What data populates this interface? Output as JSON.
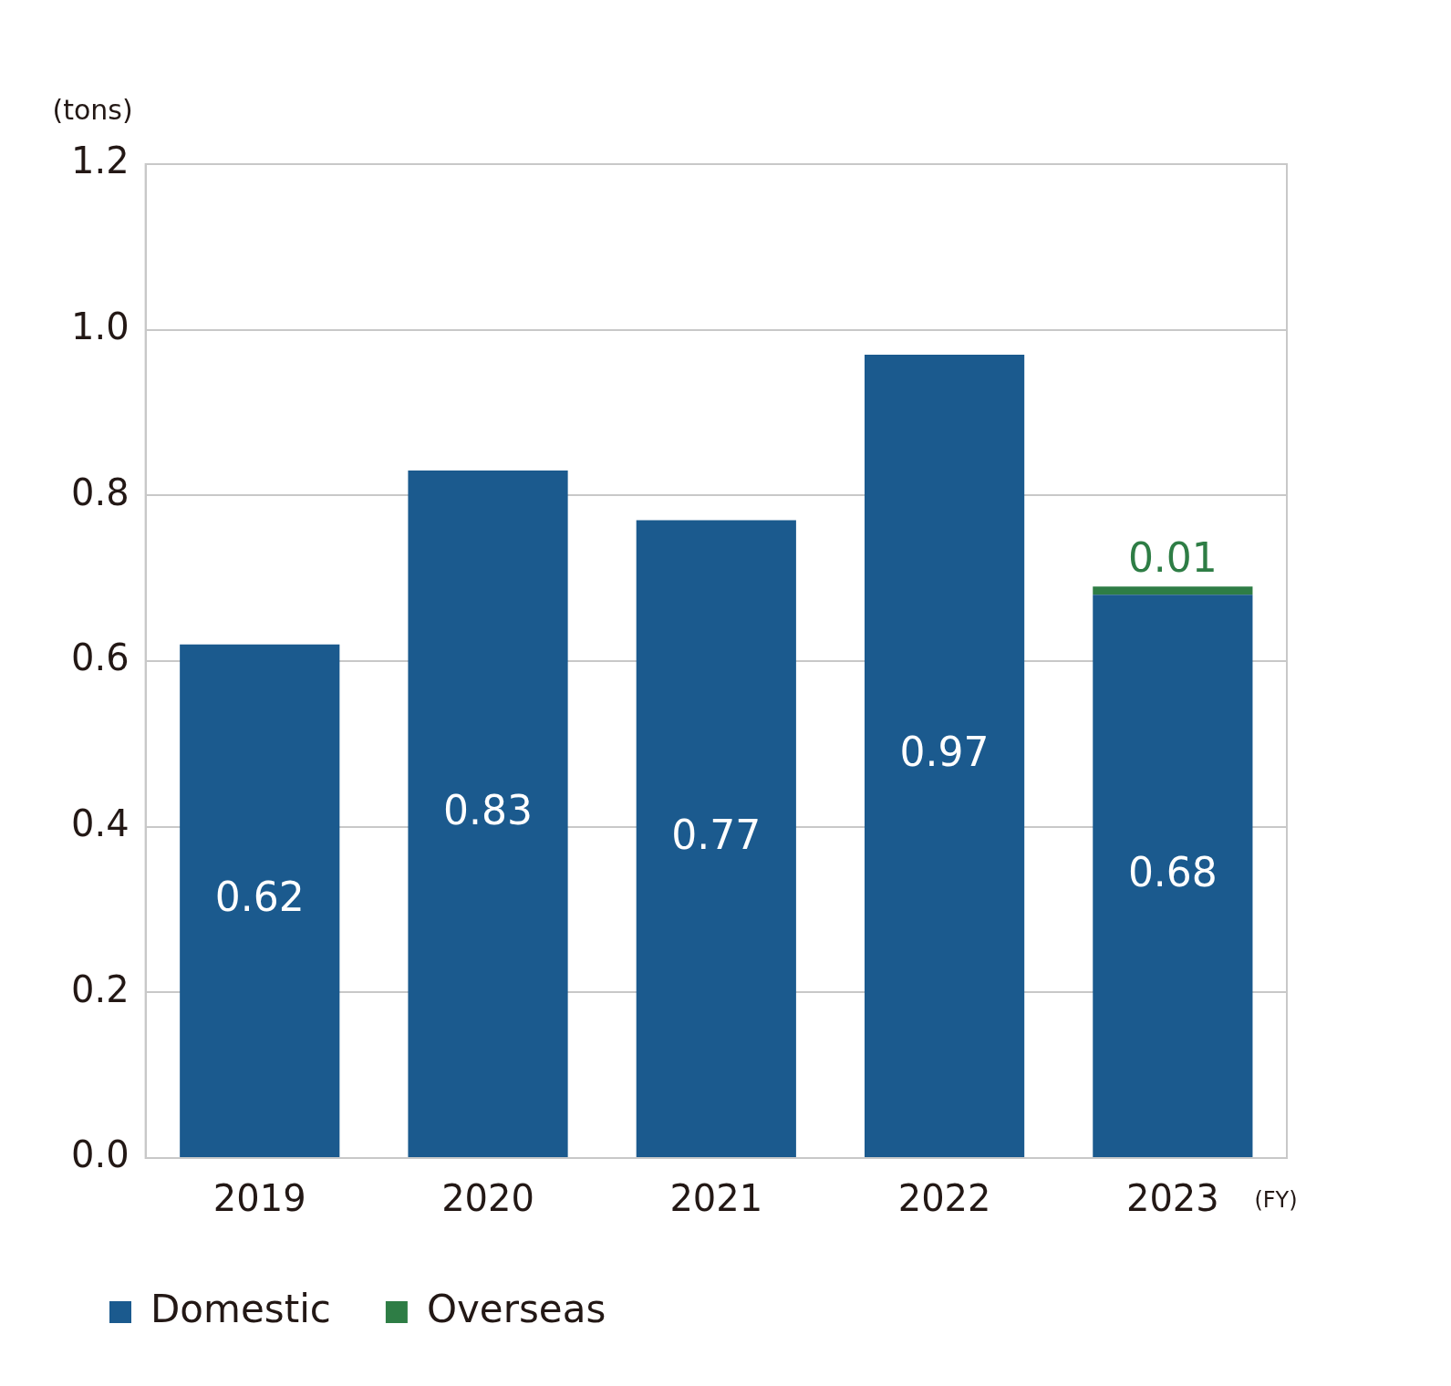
{
  "chart_data": {
    "type": "bar",
    "stacked": true,
    "data_labels": true,
    "grid": true,
    "legend": "bottom-left",
    "y_label": "(tons)",
    "x_label": "(FY)",
    "categories": [
      "2019",
      "2020",
      "2021",
      "2022",
      "2023"
    ],
    "series": [
      {
        "name": "Domestic",
        "color": "#1b5a8e",
        "values": [
          0.62,
          0.83,
          0.77,
          0.97,
          0.68
        ]
      },
      {
        "name": "Overseas",
        "color": "#2e7d45",
        "values": [
          null,
          null,
          null,
          null,
          0.01
        ]
      }
    ],
    "ylim": [
      0,
      1.2
    ],
    "yticks": [
      {
        "value": 0,
        "label": "0.0"
      },
      0.2,
      0.4,
      0.6,
      0.8,
      {
        "value": 1,
        "label": "1.0"
      },
      1.2
    ]
  }
}
